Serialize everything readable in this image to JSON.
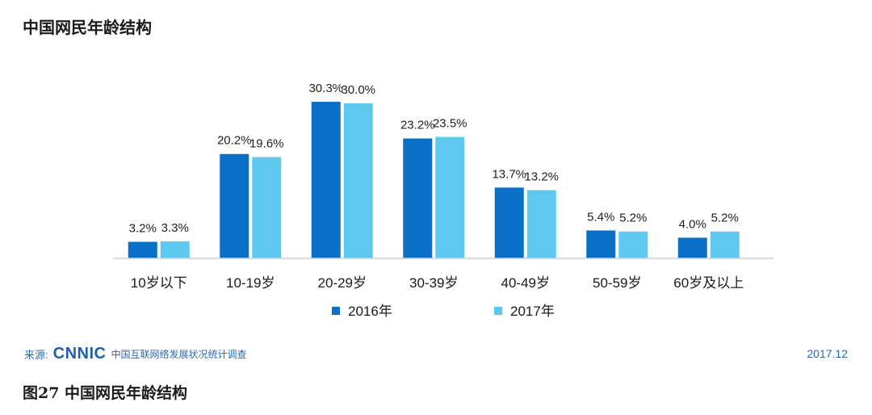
{
  "title": "中国网民年龄结构",
  "chart_data": {
    "type": "bar",
    "categories": [
      "10岁以下",
      "10-19岁",
      "20-29岁",
      "30-39岁",
      "40-49岁",
      "50-59岁",
      "60岁及以上"
    ],
    "series": [
      {
        "name": "2016年",
        "values": [
          3.2,
          20.2,
          30.3,
          23.2,
          13.7,
          5.4,
          4.0
        ],
        "labels": [
          "3.2%",
          "20.2%",
          "30.3%",
          "23.2%",
          "13.7%",
          "5.4%",
          "4.0%"
        ],
        "color": "#0a6fc6"
      },
      {
        "name": "2017年",
        "values": [
          3.3,
          19.6,
          30.0,
          23.5,
          13.2,
          5.2,
          5.2
        ],
        "labels": [
          "3.3%",
          "19.6%",
          "30.0%",
          "23.5%",
          "13.2%",
          "5.2%",
          "5.2%"
        ],
        "color": "#5ec8ee"
      }
    ],
    "title": "中国网民年龄结构",
    "xlabel": "",
    "ylabel": "",
    "grid": false,
    "legend_position": "bottom-center"
  },
  "footer": {
    "source_prefix": "来源:",
    "source_logo": "CNNIC",
    "source_text": "中国互联网络发展状况统计调查",
    "date": "2017.12"
  },
  "caption": "图27  中国网民年龄结构"
}
